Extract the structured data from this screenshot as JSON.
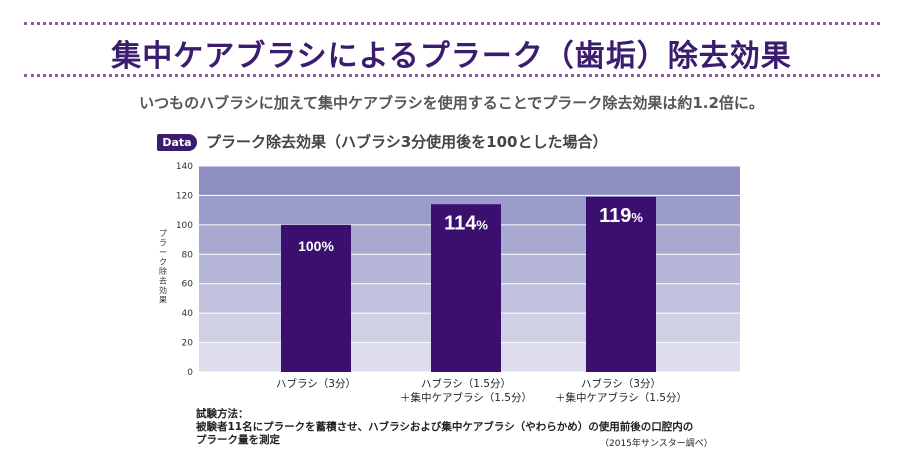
{
  "title": "集中ケアブラシによるプラーク（歯垢）除去効果",
  "subtitle": "いつものハブラシに加えて集中ケアブラシを使用することでプラーク除去効果は約1.2倍に。",
  "badge": "Data",
  "chart_heading": "プラーク除去効果（ハブラシ3分使用後を100とした場合）",
  "colors": {
    "title": "#3b1c6e",
    "bar": "#3a0f6e",
    "band_top": "#8f8fc3",
    "band_bottom": "#dcdcec",
    "dots": "#8e5a9e"
  },
  "chart_data": {
    "type": "bar",
    "categories": [
      [
        "ハブラシ（3分）"
      ],
      [
        "ハブラシ（1.5分）",
        "＋集中ケアブラシ（1.5分）"
      ],
      [
        "ハブラシ（3分）",
        "＋集中ケアブラシ（1.5分）"
      ]
    ],
    "values": [
      100,
      114,
      119
    ],
    "data_labels": [
      {
        "number": "100",
        "unit": "%"
      },
      {
        "number": "114",
        "unit": "%"
      },
      {
        "number": "119",
        "unit": "%"
      }
    ],
    "ylabel": "プラーク除去効果",
    "ylim": [
      0,
      140
    ],
    "yticks": [
      "0",
      "20",
      "40",
      "60",
      "80",
      "100",
      "120",
      "140"
    ],
    "grid": true
  },
  "method": {
    "heading": "試験方法：",
    "lines": [
      "被験者11名にプラークを蓄積させ、ハブラシおよび集中ケアブラシ（やわらかめ）の使用前後の口腔内の",
      "プラーク量を測定"
    ],
    "source": "（2015年サンスター調べ）"
  }
}
